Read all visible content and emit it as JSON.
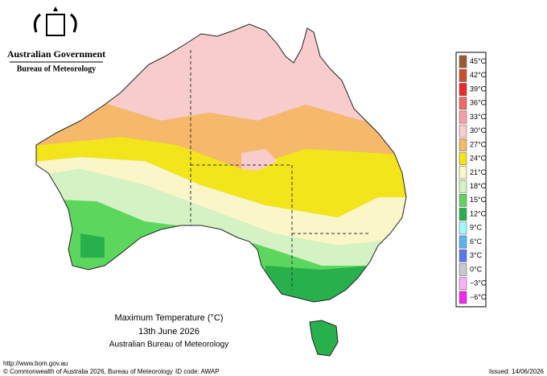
{
  "header": {
    "line1": "Australian Government",
    "line2": "Bureau of Meteorology"
  },
  "legend": {
    "items": [
      {
        "label": "45°C",
        "color": "#9a5a2e"
      },
      {
        "label": "42°C",
        "color": "#c8502c"
      },
      {
        "label": "39°C",
        "color": "#ec2a2a"
      },
      {
        "label": "36°C",
        "color": "#f06868"
      },
      {
        "label": "33°C",
        "color": "#f4a0a6"
      },
      {
        "label": "30°C",
        "color": "#f8cccc"
      },
      {
        "label": "27°C",
        "color": "#f6b86a"
      },
      {
        "label": "24°C",
        "color": "#f4e41c"
      },
      {
        "label": "21°C",
        "color": "#faf6c8"
      },
      {
        "label": "18°C",
        "color": "#d4f2c4"
      },
      {
        "label": "15°C",
        "color": "#5cd65c"
      },
      {
        "label": "12°C",
        "color": "#28b04c"
      },
      {
        "label": "9°C",
        "color": "#a0fafa"
      },
      {
        "label": "6°C",
        "color": "#5ab4f4"
      },
      {
        "label": "3°C",
        "color": "#5a78e8"
      },
      {
        "label": "0°C",
        "color": "#c8c8d0"
      },
      {
        "label": "−3°C",
        "color": "#f8b0f8"
      },
      {
        "label": "−6°C",
        "color": "#f028f0"
      }
    ]
  },
  "caption": {
    "title": "Maximum Temperature (°C)",
    "date": "13th June 2026",
    "source": "Australian Bureau of Meteorology"
  },
  "footer": {
    "url": "http://www.bom.gov.au",
    "copyright": "© Commonwealth of Australia 2026, Bureau of Meteorology",
    "id": "ID code: AWAP",
    "issued": "Issued: 14/06/2026"
  }
}
